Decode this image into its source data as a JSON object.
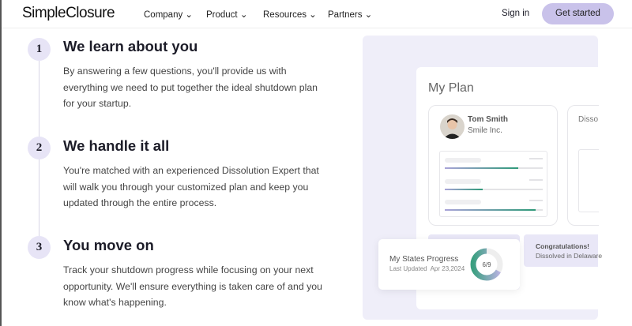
{
  "nav": {
    "logo": "SimpleClosure",
    "items": [
      "Company",
      "Product",
      "Resources",
      "Partners"
    ],
    "sign_in": "Sign in",
    "get_started": "Get started"
  },
  "steps": [
    {
      "number": "1",
      "title": "We learn about you",
      "body": "By answering a few questions, you'll provide us with everything we need to put together the ideal shutdown plan for your startup."
    },
    {
      "number": "2",
      "title": "We handle it all",
      "body": "You're matched with an experienced Dissolution Expert that will walk you through your customized plan and keep you updated through the entire process."
    },
    {
      "number": "3",
      "title": "You move on",
      "body": "Track your shutdown progress while focusing on your next opportunity. We'll ensure everything is taken care of and you know what's happening."
    }
  ],
  "mockup": {
    "title": "My Plan",
    "user": {
      "name": "Tom Smith",
      "company": "Smile Inc."
    },
    "second_card_label": "Dissol",
    "progress_bars": [
      0.75,
      0.39,
      0.93
    ],
    "states": {
      "title": "My States Progress",
      "updated": "Last Updated  Apr 23,2024",
      "value": "6/9",
      "fraction": 0.667
    },
    "congrats": {
      "title": "Congratulations!",
      "text": "Dissolved in Delaware"
    }
  },
  "colors": {
    "accent": "#c9c2ea",
    "green": "#2f9a79",
    "panel": "#efeef9"
  }
}
